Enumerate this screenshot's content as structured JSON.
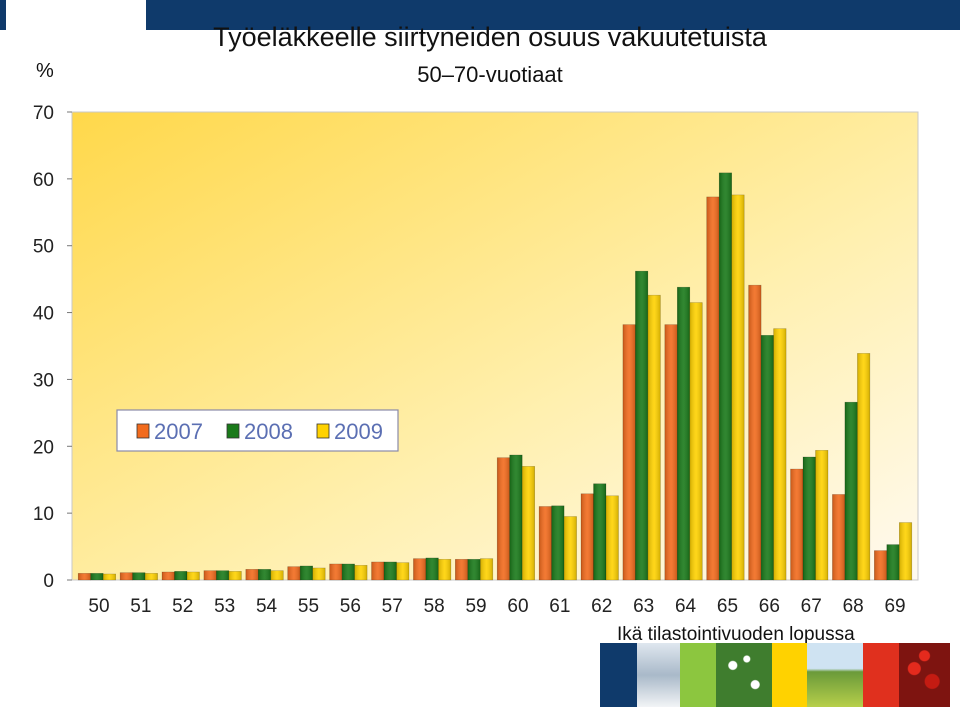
{
  "header": {
    "title": "Työeläkkeelle siirtyneiden osuus vakuutetuista",
    "subtitle": "50–70-vuotiaat",
    "unit_label": "%"
  },
  "footer": {
    "x_caption": "Ikä tilastointivuoden lopussa",
    "image_strip": [
      "navy",
      "winter-trees",
      "green",
      "white-flowers",
      "yellow",
      "field-landscape",
      "red",
      "red-berries"
    ]
  },
  "colors": {
    "series": [
      "#f26b1d",
      "#1a7a1a",
      "#ffd200"
    ],
    "plot_bg_top": "#ffe066",
    "plot_bg_bottom": "#fff7d6",
    "brand_navy": "#0f3a6b"
  },
  "chart_data": {
    "type": "bar",
    "title": "Työeläkkeelle siirtyneiden osuus vakuutetuista",
    "subtitle": "50–70-vuotiaat",
    "ylabel": "%",
    "xlabel": "Ikä tilastointivuoden lopussa",
    "ylim": [
      0,
      70
    ],
    "yticks": [
      0,
      10,
      20,
      30,
      40,
      50,
      60,
      70
    ],
    "grid": false,
    "legend_position": "middle-left",
    "categories": [
      "50",
      "51",
      "52",
      "53",
      "54",
      "55",
      "56",
      "57",
      "58",
      "59",
      "60",
      "61",
      "62",
      "63",
      "64",
      "65",
      "66",
      "67",
      "68",
      "69"
    ],
    "series": [
      {
        "name": "2007",
        "values": [
          1.0,
          1.1,
          1.2,
          1.4,
          1.6,
          2.0,
          2.4,
          2.7,
          3.2,
          3.1,
          18.3,
          11.0,
          12.9,
          38.2,
          38.2,
          57.3,
          44.1,
          16.6,
          12.8,
          4.4
        ]
      },
      {
        "name": "2008",
        "values": [
          1.0,
          1.1,
          1.3,
          1.4,
          1.6,
          2.1,
          2.4,
          2.7,
          3.3,
          3.1,
          18.7,
          11.1,
          14.4,
          46.2,
          43.8,
          60.9,
          36.6,
          18.4,
          26.6,
          5.3
        ]
      },
      {
        "name": "2009",
        "values": [
          0.9,
          1.0,
          1.2,
          1.3,
          1.4,
          1.8,
          2.2,
          2.6,
          3.1,
          3.2,
          17.0,
          9.5,
          12.6,
          42.6,
          41.5,
          57.6,
          37.6,
          19.4,
          33.9,
          8.6
        ]
      }
    ]
  }
}
